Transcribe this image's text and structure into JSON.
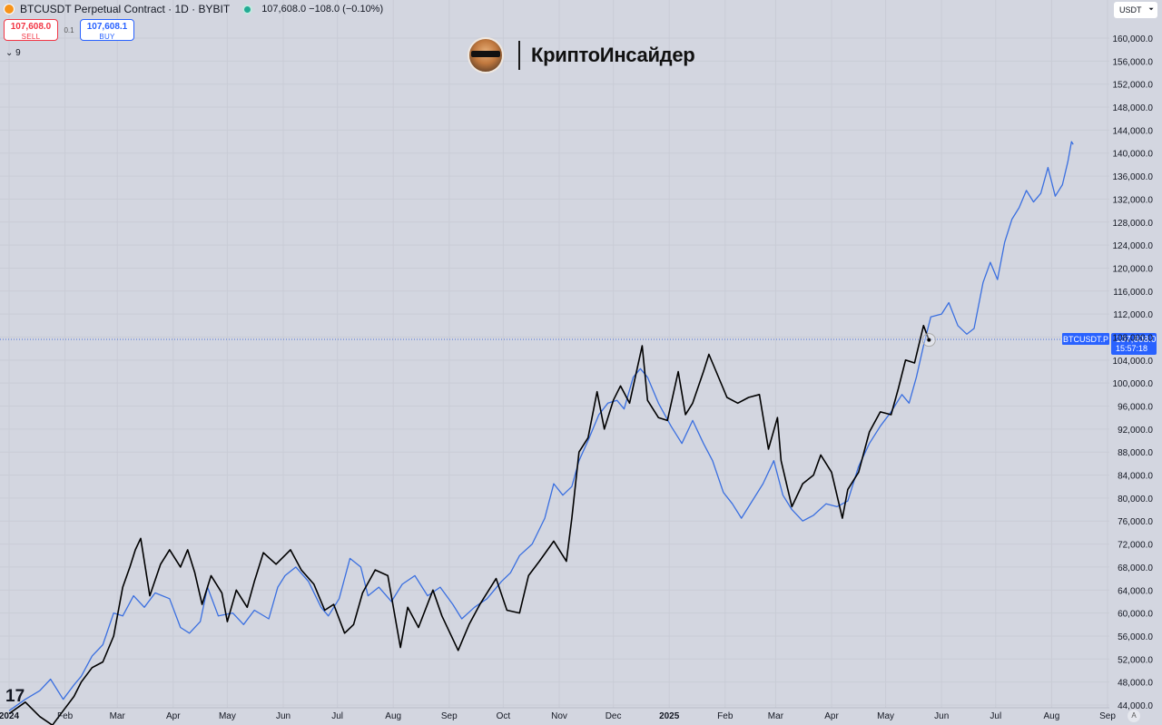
{
  "header": {
    "title": "BTCUSDT Perpetual Contract · 1D · BYBIT",
    "quote": "107,608.0  −108.0 (−0.10%)"
  },
  "trade": {
    "sell_price": "107,608.0",
    "sell_label": "SELL",
    "spread": "0.1",
    "buy_price": "107,608.1",
    "buy_label": "BUY"
  },
  "indicators_toggle": "⌄ 9",
  "unit_selector": "USDT",
  "watermark": {
    "brand": "КриптоИнсайдер"
  },
  "tv_logo": "17",
  "auto_scale": "A",
  "colors": {
    "background": "#d3d6e0",
    "price_line": "#000000",
    "overlay_line": "#3a6fe0",
    "last_price_label": "#2962ff"
  },
  "chart_data": {
    "type": "line",
    "ylim": [
      43000,
      163000
    ],
    "y_ticks": [
      "44,000.0",
      "48,000.0",
      "52,000.0",
      "56,000.0",
      "60,000.0",
      "64,000.0",
      "68,000.0",
      "72,000.0",
      "76,000.0",
      "80,000.0",
      "84,000.0",
      "88,000.0",
      "92,000.0",
      "96,000.0",
      "100,000.0",
      "104,000.0",
      "108,000.0",
      "112,000.0",
      "116,000.0",
      "120,000.0",
      "124,000.0",
      "128,000.0",
      "132,000.0",
      "136,000.0",
      "140,000.0",
      "144,000.0",
      "148,000.0",
      "152,000.0",
      "156,000.0",
      "160,000.0"
    ],
    "y_tick_values": [
      44000,
      48000,
      52000,
      56000,
      60000,
      64000,
      68000,
      72000,
      76000,
      80000,
      84000,
      88000,
      92000,
      96000,
      100000,
      104000,
      108000,
      112000,
      116000,
      120000,
      124000,
      128000,
      132000,
      136000,
      140000,
      144000,
      148000,
      152000,
      156000,
      160000
    ],
    "x_ticks": [
      "2024",
      "Feb",
      "Mar",
      "Apr",
      "May",
      "Jun",
      "Jul",
      "Aug",
      "Sep",
      "Oct",
      "Nov",
      "Dec",
      "2025",
      "Feb",
      "Mar",
      "Apr",
      "May",
      "Jun",
      "Jul",
      "Aug",
      "Sep"
    ],
    "x_tick_dates": [
      "2024-01-01",
      "2024-02-01",
      "2024-03-01",
      "2024-04-01",
      "2024-05-01",
      "2024-06-01",
      "2024-07-01",
      "2024-08-01",
      "2024-09-01",
      "2024-10-01",
      "2024-11-01",
      "2024-12-01",
      "2025-01-01",
      "2025-02-01",
      "2025-03-01",
      "2025-04-01",
      "2025-05-01",
      "2025-06-01",
      "2025-07-01",
      "2025-08-01",
      "2025-09-01"
    ],
    "x_tick_bold": [
      true,
      false,
      false,
      false,
      false,
      false,
      false,
      false,
      false,
      false,
      false,
      false,
      true,
      false,
      false,
      false,
      false,
      false,
      false,
      false,
      false
    ],
    "last_price": {
      "series": "BTCUSDT.P",
      "value": 107608,
      "label_symbol": "BTCUSDT.P",
      "label_price": "107,608.0",
      "label_countdown": "15:57:18"
    },
    "series": [
      {
        "color": "#000000",
        "points": [
          [
            "2024-01-01",
            42500
          ],
          [
            "2024-01-10",
            44500
          ],
          [
            "2024-01-18",
            42000
          ],
          [
            "2024-01-25",
            40500
          ],
          [
            "2024-01-31",
            43000
          ],
          [
            "2024-02-06",
            45500
          ],
          [
            "2024-02-10",
            48000
          ],
          [
            "2024-02-16",
            50500
          ],
          [
            "2024-02-22",
            51500
          ],
          [
            "2024-02-28",
            56000
          ],
          [
            "2024-03-04",
            64500
          ],
          [
            "2024-03-08",
            68000
          ],
          [
            "2024-03-11",
            71000
          ],
          [
            "2024-03-14",
            73000
          ],
          [
            "2024-03-19",
            63000
          ],
          [
            "2024-03-25",
            68500
          ],
          [
            "2024-03-30",
            71000
          ],
          [
            "2024-04-05",
            68000
          ],
          [
            "2024-04-09",
            71000
          ],
          [
            "2024-04-13",
            67000
          ],
          [
            "2024-04-17",
            61500
          ],
          [
            "2024-04-22",
            66500
          ],
          [
            "2024-04-28",
            63500
          ],
          [
            "2024-05-01",
            58500
          ],
          [
            "2024-05-06",
            64000
          ],
          [
            "2024-05-12",
            61000
          ],
          [
            "2024-05-16",
            65500
          ],
          [
            "2024-05-21",
            70500
          ],
          [
            "2024-05-28",
            68500
          ],
          [
            "2024-06-05",
            71000
          ],
          [
            "2024-06-11",
            67500
          ],
          [
            "2024-06-18",
            65000
          ],
          [
            "2024-06-24",
            60500
          ],
          [
            "2024-06-29",
            61500
          ],
          [
            "2024-07-05",
            56500
          ],
          [
            "2024-07-10",
            58000
          ],
          [
            "2024-07-15",
            63500
          ],
          [
            "2024-07-22",
            67500
          ],
          [
            "2024-07-29",
            66500
          ],
          [
            "2024-08-05",
            54000
          ],
          [
            "2024-08-09",
            61000
          ],
          [
            "2024-08-15",
            57500
          ],
          [
            "2024-08-23",
            64000
          ],
          [
            "2024-08-28",
            59500
          ],
          [
            "2024-09-06",
            53500
          ],
          [
            "2024-09-12",
            58000
          ],
          [
            "2024-09-18",
            61500
          ],
          [
            "2024-09-27",
            66000
          ],
          [
            "2024-10-03",
            60500
          ],
          [
            "2024-10-10",
            60000
          ],
          [
            "2024-10-15",
            66500
          ],
          [
            "2024-10-21",
            69000
          ],
          [
            "2024-10-29",
            72500
          ],
          [
            "2024-11-05",
            69000
          ],
          [
            "2024-11-08",
            76500
          ],
          [
            "2024-11-12",
            88000
          ],
          [
            "2024-11-17",
            90500
          ],
          [
            "2024-11-22",
            98500
          ],
          [
            "2024-11-26",
            92000
          ],
          [
            "2024-12-01",
            97000
          ],
          [
            "2024-12-05",
            99500
          ],
          [
            "2024-12-10",
            96500
          ],
          [
            "2024-12-17",
            106500
          ],
          [
            "2024-12-20",
            97000
          ],
          [
            "2024-12-26",
            94000
          ],
          [
            "2024-12-31",
            93500
          ],
          [
            "2025-01-06",
            102000
          ],
          [
            "2025-01-10",
            94500
          ],
          [
            "2025-01-14",
            96500
          ],
          [
            "2025-01-20",
            102000
          ],
          [
            "2025-01-23",
            105000
          ],
          [
            "2025-01-27",
            102000
          ],
          [
            "2025-02-02",
            97500
          ],
          [
            "2025-02-08",
            96500
          ],
          [
            "2025-02-14",
            97500
          ],
          [
            "2025-02-20",
            98000
          ],
          [
            "2025-02-25",
            88500
          ],
          [
            "2025-03-02",
            94000
          ],
          [
            "2025-03-04",
            86500
          ],
          [
            "2025-03-10",
            78500
          ],
          [
            "2025-03-16",
            82500
          ],
          [
            "2025-03-22",
            84000
          ],
          [
            "2025-03-26",
            87500
          ],
          [
            "2025-04-01",
            84500
          ],
          [
            "2025-04-07",
            76500
          ],
          [
            "2025-04-10",
            81500
          ],
          [
            "2025-04-16",
            84500
          ],
          [
            "2025-04-22",
            91500
          ],
          [
            "2025-04-28",
            95000
          ],
          [
            "2025-05-04",
            94500
          ],
          [
            "2025-05-08",
            99000
          ],
          [
            "2025-05-12",
            104000
          ],
          [
            "2025-05-17",
            103500
          ],
          [
            "2025-05-22",
            110000
          ],
          [
            "2025-05-25",
            107500
          ]
        ]
      },
      {
        "color": "#3a6fe0",
        "points": [
          [
            "2024-01-01",
            43000
          ],
          [
            "2024-01-10",
            45000
          ],
          [
            "2024-01-18",
            46500
          ],
          [
            "2024-01-24",
            48500
          ],
          [
            "2024-01-31",
            45000
          ],
          [
            "2024-02-06",
            47500
          ],
          [
            "2024-02-10",
            49000
          ],
          [
            "2024-02-16",
            52500
          ],
          [
            "2024-02-22",
            54500
          ],
          [
            "2024-02-28",
            60000
          ],
          [
            "2024-03-04",
            59500
          ],
          [
            "2024-03-10",
            63000
          ],
          [
            "2024-03-16",
            61000
          ],
          [
            "2024-03-22",
            63500
          ],
          [
            "2024-03-30",
            62500
          ],
          [
            "2024-04-05",
            57500
          ],
          [
            "2024-04-10",
            56500
          ],
          [
            "2024-04-16",
            58500
          ],
          [
            "2024-04-20",
            64500
          ],
          [
            "2024-04-26",
            59500
          ],
          [
            "2024-05-04",
            60000
          ],
          [
            "2024-05-10",
            58000
          ],
          [
            "2024-05-16",
            60500
          ],
          [
            "2024-05-24",
            59000
          ],
          [
            "2024-05-29",
            64500
          ],
          [
            "2024-06-02",
            66500
          ],
          [
            "2024-06-08",
            68000
          ],
          [
            "2024-06-15",
            65500
          ],
          [
            "2024-06-22",
            61000
          ],
          [
            "2024-06-26",
            59500
          ],
          [
            "2024-07-02",
            62500
          ],
          [
            "2024-07-08",
            69500
          ],
          [
            "2024-07-14",
            68000
          ],
          [
            "2024-07-18",
            63000
          ],
          [
            "2024-07-24",
            64500
          ],
          [
            "2024-07-31",
            62000
          ],
          [
            "2024-08-06",
            65000
          ],
          [
            "2024-08-13",
            66500
          ],
          [
            "2024-08-20",
            63000
          ],
          [
            "2024-08-27",
            64500
          ],
          [
            "2024-09-03",
            61500
          ],
          [
            "2024-09-08",
            59000
          ],
          [
            "2024-09-15",
            61000
          ],
          [
            "2024-09-22",
            62500
          ],
          [
            "2024-09-30",
            65500
          ],
          [
            "2024-10-05",
            67000
          ],
          [
            "2024-10-10",
            70000
          ],
          [
            "2024-10-17",
            72000
          ],
          [
            "2024-10-24",
            76500
          ],
          [
            "2024-10-29",
            82500
          ],
          [
            "2024-11-03",
            80500
          ],
          [
            "2024-11-08",
            82000
          ],
          [
            "2024-11-12",
            86500
          ],
          [
            "2024-11-17",
            90000
          ],
          [
            "2024-11-23",
            94500
          ],
          [
            "2024-11-28",
            96500
          ],
          [
            "2024-12-03",
            97000
          ],
          [
            "2024-12-07",
            95500
          ],
          [
            "2024-12-12",
            101000
          ],
          [
            "2024-12-16",
            102500
          ],
          [
            "2024-12-20",
            101000
          ],
          [
            "2024-12-26",
            96500
          ],
          [
            "2025-01-02",
            92500
          ],
          [
            "2025-01-08",
            89500
          ],
          [
            "2025-01-14",
            93500
          ],
          [
            "2025-01-20",
            89500
          ],
          [
            "2025-01-25",
            86500
          ],
          [
            "2025-01-31",
            81000
          ],
          [
            "2025-02-05",
            79000
          ],
          [
            "2025-02-10",
            76500
          ],
          [
            "2025-02-16",
            79500
          ],
          [
            "2025-02-22",
            82500
          ],
          [
            "2025-02-28",
            86500
          ],
          [
            "2025-03-05",
            80500
          ],
          [
            "2025-03-10",
            78000
          ],
          [
            "2025-03-16",
            76000
          ],
          [
            "2025-03-22",
            77000
          ],
          [
            "2025-03-29",
            79000
          ],
          [
            "2025-04-04",
            78500
          ],
          [
            "2025-04-10",
            79500
          ],
          [
            "2025-04-16",
            85500
          ],
          [
            "2025-04-22",
            89500
          ],
          [
            "2025-04-28",
            92500
          ],
          [
            "2025-05-04",
            95000
          ],
          [
            "2025-05-10",
            98000
          ],
          [
            "2025-05-14",
            96500
          ],
          [
            "2025-05-18",
            101000
          ],
          [
            "2025-05-22",
            106500
          ],
          [
            "2025-05-26",
            111500
          ],
          [
            "2025-06-01",
            112000
          ],
          [
            "2025-06-05",
            114000
          ],
          [
            "2025-06-10",
            110000
          ],
          [
            "2025-06-15",
            108500
          ],
          [
            "2025-06-19",
            109500
          ],
          [
            "2025-06-24",
            117500
          ],
          [
            "2025-06-28",
            121000
          ],
          [
            "2025-07-02",
            118000
          ],
          [
            "2025-07-06",
            124500
          ],
          [
            "2025-07-10",
            128500
          ],
          [
            "2025-07-14",
            130500
          ],
          [
            "2025-07-18",
            133500
          ],
          [
            "2025-07-22",
            131500
          ],
          [
            "2025-07-26",
            133000
          ],
          [
            "2025-07-30",
            137500
          ],
          [
            "2025-08-03",
            132500
          ],
          [
            "2025-08-07",
            134500
          ],
          [
            "2025-08-10",
            138500
          ],
          [
            "2025-08-12",
            142000
          ],
          [
            "2025-08-13",
            141500
          ]
        ]
      }
    ]
  }
}
